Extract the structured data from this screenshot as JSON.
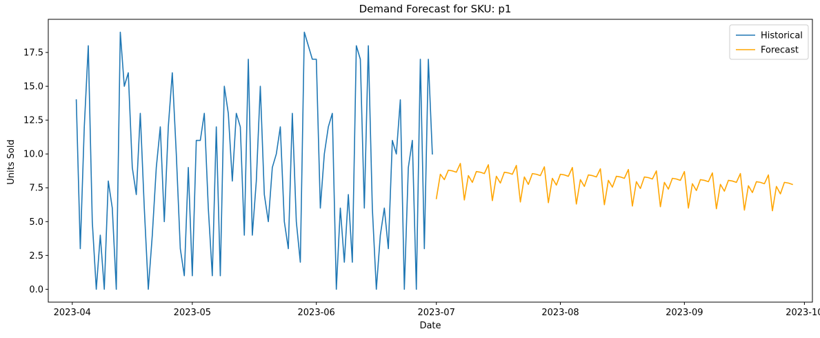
{
  "chart_data": {
    "type": "line",
    "title": "Demand Forecast for SKU: p1",
    "xlabel": "Date",
    "ylabel": "Units Sold",
    "xlim": [
      "2023-03-26",
      "2023-10-03"
    ],
    "ylim": [
      -0.95,
      19.95
    ],
    "x_ticks": [
      "2023-04-01",
      "2023-05-01",
      "2023-06-01",
      "2023-07-01",
      "2023-08-01",
      "2023-09-01",
      "2023-10-01"
    ],
    "x_tick_labels": [
      "2023-04",
      "2023-05",
      "2023-06",
      "2023-07",
      "2023-08",
      "2023-09",
      "2023-10"
    ],
    "y_ticks": [
      0,
      2.5,
      5,
      7.5,
      10,
      12.5,
      15,
      17.5
    ],
    "y_tick_labels": [
      "0.0",
      "2.5",
      "5.0",
      "7.5",
      "10.0",
      "12.5",
      "15.0",
      "17.5"
    ],
    "grid": false,
    "legend": "top-right",
    "series": [
      {
        "name": "Historical",
        "color": "#1f77b4",
        "start_date": "2023-04-02",
        "values": [
          14,
          3,
          12,
          18,
          5,
          0,
          4,
          0,
          8,
          6,
          0,
          19,
          15,
          16,
          9,
          7,
          13,
          6,
          0,
          4,
          9,
          12,
          5,
          12,
          16,
          10,
          3,
          1,
          9,
          1,
          11,
          11,
          13,
          6,
          1,
          12,
          1,
          15,
          13,
          8,
          13,
          12,
          4,
          17,
          4,
          8,
          15,
          7,
          5,
          9,
          10,
          12,
          5,
          3,
          13,
          5,
          2,
          19,
          18,
          17,
          17,
          6,
          10,
          12,
          13,
          0,
          6,
          2,
          7,
          2,
          18,
          17,
          6,
          18,
          6,
          0,
          4,
          6,
          3,
          11,
          10,
          14,
          0,
          9,
          11,
          0,
          17,
          3,
          17,
          10
        ]
      },
      {
        "name": "Forecast",
        "color": "#ffa500",
        "start_date": "2023-07-01",
        "values": [
          6.7,
          8.5,
          8.1,
          8.8,
          8.75,
          8.65,
          9.3,
          6.6,
          8.4,
          7.9,
          8.7,
          8.65,
          8.55,
          9.2,
          6.55,
          8.35,
          7.85,
          8.65,
          8.6,
          8.5,
          9.15,
          6.45,
          8.3,
          7.75,
          8.55,
          8.5,
          8.4,
          9.05,
          6.4,
          8.2,
          7.7,
          8.5,
          8.45,
          8.35,
          9.0,
          6.3,
          8.1,
          7.6,
          8.45,
          8.4,
          8.3,
          8.9,
          6.25,
          8.05,
          7.55,
          8.35,
          8.3,
          8.2,
          8.85,
          6.15,
          7.95,
          7.45,
          8.3,
          8.25,
          8.15,
          8.75,
          6.1,
          7.9,
          7.4,
          8.2,
          8.15,
          8.05,
          8.7,
          6.0,
          7.8,
          7.3,
          8.1,
          8.05,
          7.95,
          8.6,
          5.95,
          7.75,
          7.25,
          8.05,
          8.0,
          7.9,
          8.55,
          5.85,
          7.65,
          7.15,
          7.95,
          7.9,
          7.8,
          8.45,
          5.8,
          7.6,
          7.05,
          7.9,
          7.85,
          7.75
        ]
      }
    ]
  }
}
